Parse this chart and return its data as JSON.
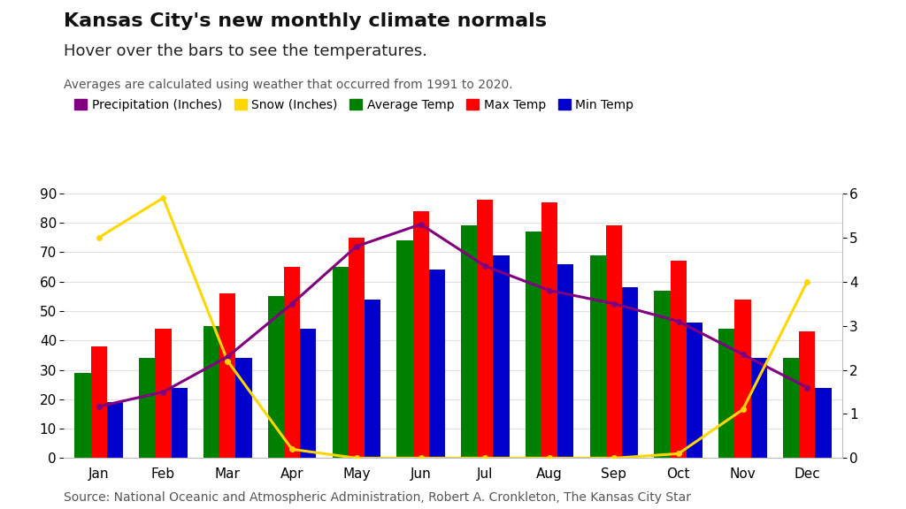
{
  "title": "Kansas City's new monthly climate normals",
  "subtitle": "Hover over the bars to see the temperatures.",
  "note": "Averages are calculated using weather that occurred from 1991 to 2020.",
  "source": "Source: National Oceanic and Atmospheric Administration, Robert A. Cronkleton, The Kansas City Star",
  "months": [
    "Jan",
    "Feb",
    "Mar",
    "Apr",
    "May",
    "Jun",
    "Jul",
    "Aug",
    "Sep",
    "Oct",
    "Nov",
    "Dec"
  ],
  "avg_temp": [
    29,
    34,
    45,
    55,
    65,
    74,
    79,
    77,
    69,
    57,
    44,
    34
  ],
  "max_temp": [
    38,
    44,
    56,
    65,
    75,
    84,
    88,
    87,
    79,
    67,
    54,
    43
  ],
  "min_temp": [
    19,
    24,
    34,
    44,
    54,
    64,
    69,
    66,
    58,
    46,
    34,
    24
  ],
  "precip": [
    1.17,
    1.5,
    2.3,
    3.5,
    4.8,
    5.3,
    4.35,
    3.8,
    3.5,
    3.1,
    2.35,
    1.6
  ],
  "snow": [
    5.0,
    5.9,
    2.2,
    0.2,
    0.0,
    0.0,
    0.0,
    0.0,
    0.0,
    0.1,
    1.1,
    4.0
  ],
  "bar_width": 0.25,
  "avg_color": "#008000",
  "max_color": "#ff0000",
  "min_color": "#0000cd",
  "precip_color": "#800080",
  "snow_color": "#ffd700",
  "bg_color": "#ffffff",
  "grid_color": "#e0e0e0",
  "ylim_left": [
    0,
    90
  ],
  "ylim_right": [
    0,
    6
  ],
  "title_fontsize": 16,
  "subtitle_fontsize": 13,
  "note_fontsize": 10,
  "source_fontsize": 10,
  "tick_fontsize": 11,
  "legend_fontsize": 10
}
